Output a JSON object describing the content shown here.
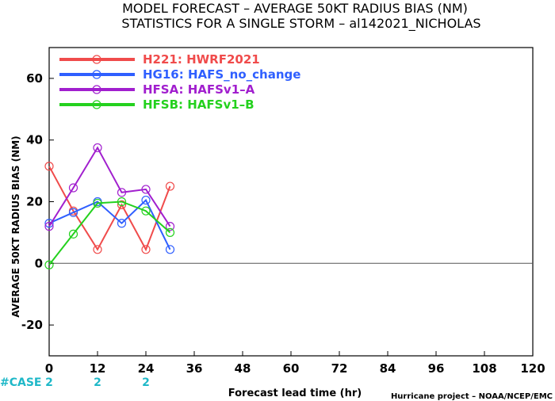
{
  "titles": {
    "line1": "MODEL FORECAST – AVERAGE 50KT RADIUS BIAS (NM)",
    "line2": "STATISTICS FOR A SINGLE STORM – al142021_NICHOLAS"
  },
  "credit": "Hurricane project – NOAA/NCEP/EMC",
  "case_label": "#CASE",
  "case_color": "#1fb8c8",
  "cases": [
    {
      "x": 0,
      "label": "2"
    },
    {
      "x": 12,
      "label": "2"
    },
    {
      "x": 24,
      "label": "2"
    }
  ],
  "chart_data": {
    "type": "line",
    "xlabel": "Forecast lead time (hr)",
    "ylabel": "AVERAGE 50KT RADIUS BIAS (NM)",
    "xlim": [
      0,
      120
    ],
    "ylim": [
      -30,
      70
    ],
    "xticks": [
      0,
      12,
      24,
      36,
      48,
      60,
      72,
      84,
      96,
      108,
      120
    ],
    "yticks": [
      -20,
      0,
      20,
      40,
      60
    ],
    "zero_line": true,
    "legend_position": "top-left",
    "series": [
      {
        "name": "H221: HWRF2021",
        "color": "#f04b4b",
        "x": [
          0,
          6,
          12,
          18,
          24,
          30
        ],
        "y": [
          31.5,
          17,
          4.5,
          19,
          4.5,
          25
        ]
      },
      {
        "name": "HG16: HAFS_no_change",
        "color": "#2f5fff",
        "x": [
          0,
          6,
          12,
          18,
          24,
          30
        ],
        "y": [
          13,
          16.5,
          20,
          13,
          20.5,
          4.5
        ]
      },
      {
        "name": "HFSA: HAFSv1–A",
        "color": "#a11fce",
        "x": [
          0,
          6,
          12,
          18,
          24,
          30
        ],
        "y": [
          12,
          24.5,
          37.5,
          23,
          24,
          12
        ]
      },
      {
        "name": "HFSB: HAFSv1–B",
        "color": "#24d11e",
        "x": [
          0,
          6,
          12,
          18,
          24,
          30
        ],
        "y": [
          -0.5,
          9.5,
          19.5,
          20,
          17,
          10
        ]
      }
    ]
  }
}
